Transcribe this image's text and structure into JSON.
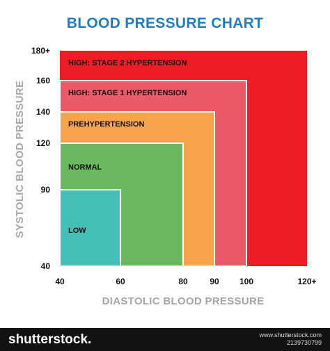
{
  "chart_data": {
    "type": "area",
    "title": "BLOOD PRESSURE CHART",
    "xlabel": "DIASTOLIC BLOOD PRESSURE",
    "ylabel": "SYSTOLIC BLOOD PRESSURE",
    "x_ticks": [
      "40",
      "60",
      "80",
      "90",
      "100",
      "120+"
    ],
    "y_ticks": [
      "40",
      "90",
      "120",
      "140",
      "160",
      "180+"
    ],
    "zones": [
      {
        "label": "HIGH:  STAGE 2 HYPERTENSION",
        "diastolic_max": "120+",
        "systolic_max": "180+",
        "color": "#ee1c25"
      },
      {
        "label": "HIGH:  STAGE 1 HYPERTENSION",
        "diastolic_max": "100",
        "systolic_max": "160",
        "color": "#ec5a6a"
      },
      {
        "label": "PREHYPERTENSION",
        "diastolic_max": "90",
        "systolic_max": "140",
        "color": "#f7a34a"
      },
      {
        "label": "NORMAL",
        "diastolic_max": "80",
        "systolic_max": "120",
        "color": "#6ab95e"
      },
      {
        "label": "LOW",
        "diastolic_max": "60",
        "systolic_max": "90",
        "color": "#45c0b7"
      }
    ]
  },
  "footer": {
    "brand": "shutterstock",
    "brand_suffix": ".",
    "url": "www.shutterstock.com",
    "image_id": "2139730799"
  },
  "colors": {
    "title": "#1f7fc4",
    "axis_title": "#a6a6a6",
    "footer_bg": "#111111",
    "border": "#ffffff"
  }
}
